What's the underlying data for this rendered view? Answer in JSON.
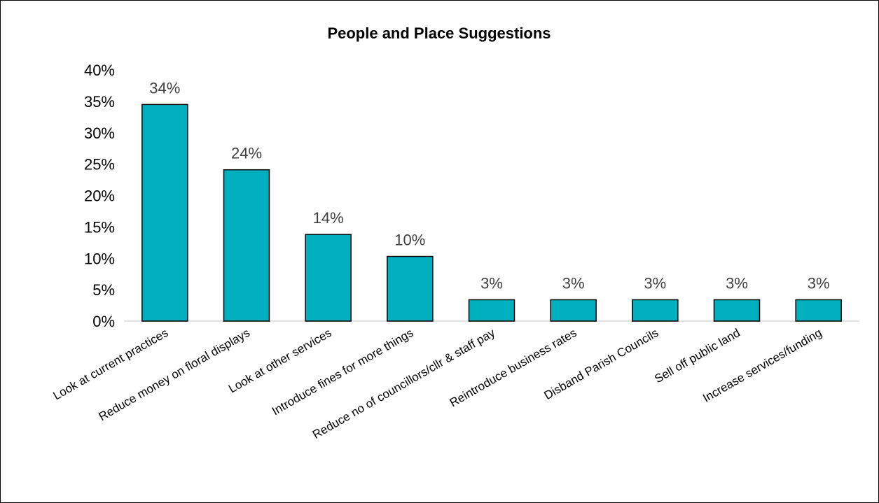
{
  "chart_data": {
    "type": "bar",
    "title": "People and Place Suggestions",
    "xlabel": "",
    "ylabel": "",
    "categories": [
      "Look at current practices",
      "Reduce money on floral displays",
      "Look at other services",
      "Introduce fines for more things",
      "Reduce no of councillors/cllr & staff pay",
      "Reintroduce business rates",
      "Disband Parish Councils",
      "Sell off public land",
      "Increase services/funding"
    ],
    "values": [
      34.5,
      24.1,
      13.8,
      10.3,
      3.4,
      3.4,
      3.4,
      3.4,
      3.4
    ],
    "data_labels": [
      "34%",
      "24%",
      "14%",
      "10%",
      "3%",
      "3%",
      "3%",
      "3%",
      "3%"
    ],
    "ylim": [
      0,
      40
    ],
    "yticks": [
      0,
      5,
      10,
      15,
      20,
      25,
      30,
      35,
      40
    ],
    "ytick_labels": [
      "0%",
      "5%",
      "10%",
      "15%",
      "20%",
      "25%",
      "30%",
      "35%",
      "40%"
    ],
    "grid": false,
    "legend": "none",
    "bar_color": "#00B0BE",
    "bar_edge_color": "#000000"
  }
}
